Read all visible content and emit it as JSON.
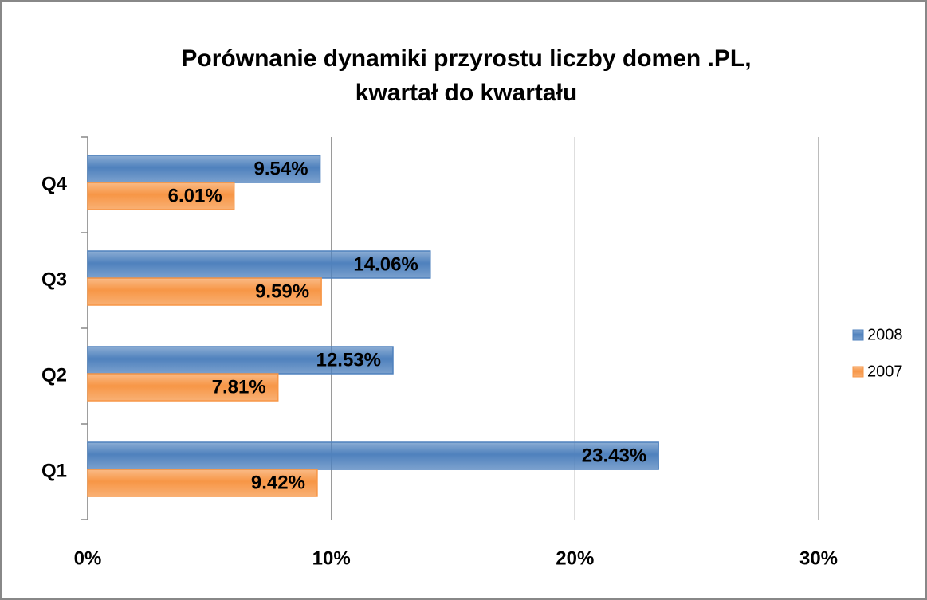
{
  "chart_data": {
    "type": "hbar",
    "title": [
      "Porównanie dynamiki przyrostu liczby domen .PL,",
      "kwartał do kwartału"
    ],
    "categories": [
      "Q1",
      "Q2",
      "Q3",
      "Q4"
    ],
    "series": [
      {
        "name": "2008",
        "color": "#4f81bd",
        "values": [
          23.43,
          12.53,
          14.06,
          9.54
        ],
        "value_labels": [
          "23.43%",
          "12.53%",
          "14.06%",
          "9.54%"
        ]
      },
      {
        "name": "2007",
        "color": "#f79646",
        "values": [
          9.42,
          7.81,
          9.59,
          6.01
        ],
        "value_labels": [
          "9.42%",
          "7.81%",
          "9.59%",
          "6.01%"
        ]
      }
    ],
    "xlim": [
      0,
      30
    ],
    "xticks": [
      {
        "value": 0,
        "label": "0%"
      },
      {
        "value": 10,
        "label": "10%"
      },
      {
        "value": 20,
        "label": "20%"
      },
      {
        "value": 30,
        "label": "30%"
      }
    ],
    "grid": true,
    "legend": "right"
  }
}
